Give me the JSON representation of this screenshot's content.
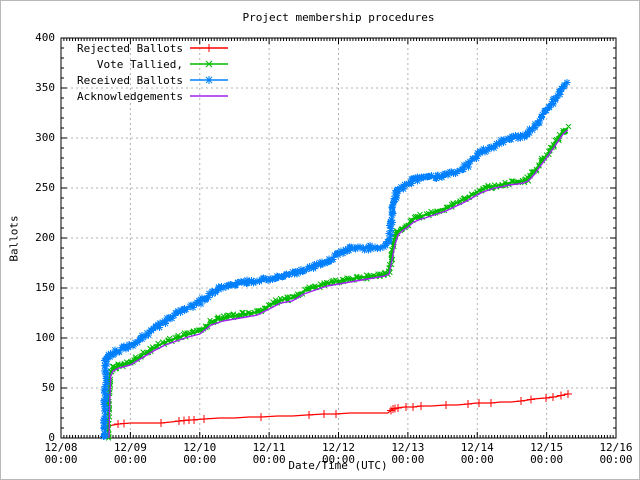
{
  "chart_data": {
    "type": "line",
    "title": "Project membership procedures",
    "xlabel": "Date/Time (UTC)",
    "ylabel": "Ballots",
    "ylim": [
      0,
      400
    ],
    "xlim_hours": [
      0,
      192
    ],
    "grid": true,
    "legend_position": "top-left",
    "grid_color": "#b0b0b0",
    "y_ticks": [
      "0",
      "50",
      "100",
      "150",
      "200",
      "250",
      "300",
      "350",
      "400"
    ],
    "x_ticks": [
      {
        "date": "12/08",
        "time": "00:00"
      },
      {
        "date": "12/09",
        "time": "00:00"
      },
      {
        "date": "12/10",
        "time": "00:00"
      },
      {
        "date": "12/11",
        "time": "00:00"
      },
      {
        "date": "12/12",
        "time": "00:00"
      },
      {
        "date": "12/13",
        "time": "00:00"
      },
      {
        "date": "12/14",
        "time": "00:00"
      },
      {
        "date": "12/15",
        "time": "00:00"
      },
      {
        "date": "12/16",
        "time": "00:00"
      }
    ],
    "series": [
      {
        "name": "Rejected Ballots",
        "color": "#ff0000",
        "marker": "plus",
        "points": [
          [
            16.5,
            0
          ],
          [
            16.6,
            12
          ],
          [
            18,
            13
          ],
          [
            20,
            14
          ],
          [
            24,
            15
          ],
          [
            32,
            15
          ],
          [
            34.6,
            15
          ],
          [
            38,
            16
          ],
          [
            41,
            17
          ],
          [
            45,
            18
          ],
          [
            49.5,
            19
          ],
          [
            55,
            20
          ],
          [
            60,
            20
          ],
          [
            65,
            21
          ],
          [
            69.2,
            21
          ],
          [
            75,
            22
          ],
          [
            80,
            22
          ],
          [
            85,
            23
          ],
          [
            91,
            24
          ],
          [
            95,
            24
          ],
          [
            100,
            25
          ],
          [
            110,
            25
          ],
          [
            113,
            25
          ],
          [
            114,
            27
          ],
          [
            115,
            29
          ],
          [
            116,
            30
          ],
          [
            119,
            31
          ],
          [
            122,
            31
          ],
          [
            124.6,
            32
          ],
          [
            128,
            32
          ],
          [
            133.2,
            33
          ],
          [
            137,
            33
          ],
          [
            140.8,
            34
          ],
          [
            143.9,
            35
          ],
          [
            148.8,
            35
          ],
          [
            152.2,
            36
          ],
          [
            155.7,
            36
          ],
          [
            159.1,
            37
          ],
          [
            161.6,
            38
          ],
          [
            163.3,
            39
          ],
          [
            167.6,
            40
          ],
          [
            170.6,
            41
          ],
          [
            172.3,
            42
          ],
          [
            173.7,
            43
          ],
          [
            175.3,
            44
          ]
        ],
        "markers_at": [
          19.7,
          21.8,
          34.6,
          40.8,
          42.5,
          44.3,
          46,
          49.5,
          69.2,
          85.8,
          91,
          95.1,
          114.2,
          114.9,
          115.6,
          116.6,
          119.3,
          121.8,
          124.6,
          133.2,
          140.8,
          144.6,
          148.8,
          159.1,
          162.6,
          167.8,
          170.2,
          173,
          175.4
        ]
      },
      {
        "name": "Vote Tallied,",
        "color": "#00bb00",
        "marker": "cross",
        "points": [
          [
            16.3,
            0
          ],
          [
            16.5,
            35
          ],
          [
            17,
            65
          ],
          [
            18,
            70
          ],
          [
            20,
            72
          ],
          [
            22,
            74
          ],
          [
            24,
            75
          ],
          [
            26,
            79
          ],
          [
            28,
            83
          ],
          [
            31,
            88
          ],
          [
            34,
            93
          ],
          [
            37,
            97
          ],
          [
            40,
            100
          ],
          [
            43,
            103
          ],
          [
            46,
            105
          ],
          [
            48,
            107
          ],
          [
            50,
            111
          ],
          [
            52,
            116
          ],
          [
            54,
            119
          ],
          [
            56,
            120
          ],
          [
            58,
            121
          ],
          [
            60,
            122
          ],
          [
            62,
            123
          ],
          [
            64,
            124
          ],
          [
            66,
            125
          ],
          [
            68,
            126
          ],
          [
            70,
            128
          ],
          [
            72,
            132
          ],
          [
            74,
            136
          ],
          [
            76,
            138
          ],
          [
            78,
            139
          ],
          [
            80,
            140
          ],
          [
            82,
            143
          ],
          [
            84,
            147
          ],
          [
            86,
            149
          ],
          [
            88,
            151
          ],
          [
            90,
            153
          ],
          [
            92,
            155
          ],
          [
            94,
            156
          ],
          [
            96,
            157
          ],
          [
            98,
            158
          ],
          [
            100,
            159
          ],
          [
            102,
            160
          ],
          [
            104,
            161
          ],
          [
            106,
            161
          ],
          [
            108,
            162
          ],
          [
            110,
            163
          ],
          [
            112,
            164
          ],
          [
            113.5,
            166
          ],
          [
            114.2,
            180
          ],
          [
            115,
            195
          ],
          [
            116,
            203
          ],
          [
            116.6,
            206
          ],
          [
            118,
            210
          ],
          [
            120,
            214
          ],
          [
            122,
            219
          ],
          [
            124.6,
            222
          ],
          [
            127,
            224
          ],
          [
            130,
            227
          ],
          [
            133.2,
            230
          ],
          [
            136,
            234
          ],
          [
            139,
            238
          ],
          [
            141,
            241
          ],
          [
            143.9,
            246
          ],
          [
            146,
            249
          ],
          [
            148,
            251
          ],
          [
            150,
            252
          ],
          [
            152.2,
            253
          ],
          [
            155,
            255
          ],
          [
            158,
            256
          ],
          [
            160,
            257
          ],
          [
            161.6,
            259
          ],
          [
            163.6,
            266
          ],
          [
            166.1,
            276
          ],
          [
            168.5,
            285
          ],
          [
            170.6,
            294
          ],
          [
            172.3,
            301
          ],
          [
            173.7,
            306
          ],
          [
            175.3,
            310
          ]
        ]
      },
      {
        "name": "Received Ballots",
        "color": "#0080ff",
        "marker": "asterisk",
        "points": [
          [
            15.2,
            0
          ],
          [
            15.3,
            40
          ],
          [
            15.5,
            77
          ],
          [
            16,
            80
          ],
          [
            17,
            83
          ],
          [
            18,
            85
          ],
          [
            20,
            88
          ],
          [
            22,
            91
          ],
          [
            24,
            93
          ],
          [
            26,
            97
          ],
          [
            28,
            101
          ],
          [
            31,
            106
          ],
          [
            34,
            112
          ],
          [
            37,
            118
          ],
          [
            40,
            124
          ],
          [
            43,
            129
          ],
          [
            46,
            133
          ],
          [
            48,
            136
          ],
          [
            50,
            140
          ],
          [
            52,
            145
          ],
          [
            55,
            149
          ],
          [
            58,
            152
          ],
          [
            61,
            154
          ],
          [
            64,
            156
          ],
          [
            67,
            157
          ],
          [
            70,
            158
          ],
          [
            72,
            159
          ],
          [
            75,
            161
          ],
          [
            78,
            163
          ],
          [
            81,
            165
          ],
          [
            84,
            168
          ],
          [
            87,
            171
          ],
          [
            90,
            174
          ],
          [
            93,
            178
          ],
          [
            96,
            184
          ],
          [
            98,
            187
          ],
          [
            100,
            189
          ],
          [
            103,
            190
          ],
          [
            106,
            190
          ],
          [
            109,
            191
          ],
          [
            112,
            192
          ],
          [
            113.5,
            196
          ],
          [
            114.2,
            215
          ],
          [
            115,
            232
          ],
          [
            116,
            243
          ],
          [
            116.6,
            248
          ],
          [
            118,
            251
          ],
          [
            120,
            254
          ],
          [
            121.5,
            257
          ],
          [
            123,
            259
          ],
          [
            124.6,
            260
          ],
          [
            127,
            260
          ],
          [
            130,
            261
          ],
          [
            133.2,
            263
          ],
          [
            136,
            266
          ],
          [
            139,
            270
          ],
          [
            141,
            273
          ],
          [
            143.9,
            283
          ],
          [
            146,
            287
          ],
          [
            149,
            291
          ],
          [
            152.2,
            296
          ],
          [
            155,
            299
          ],
          [
            158,
            301
          ],
          [
            160,
            302
          ],
          [
            161.6,
            305
          ],
          [
            163.6,
            311
          ],
          [
            166.1,
            320
          ],
          [
            168.5,
            330
          ],
          [
            170.6,
            338
          ],
          [
            172.3,
            345
          ],
          [
            173.7,
            350
          ],
          [
            174.7,
            355
          ]
        ]
      },
      {
        "name": "Acknowledgements",
        "color": "#a020f0",
        "marker": "none",
        "points": [
          [
            16.6,
            0
          ],
          [
            16.8,
            30
          ],
          [
            17.2,
            62
          ],
          [
            18,
            67
          ],
          [
            20,
            70
          ],
          [
            24,
            73
          ],
          [
            28,
            80
          ],
          [
            32,
            87
          ],
          [
            36,
            93
          ],
          [
            40,
            97
          ],
          [
            44,
            101
          ],
          [
            48,
            104
          ],
          [
            52,
            113
          ],
          [
            56,
            117
          ],
          [
            60,
            119
          ],
          [
            64,
            121
          ],
          [
            68,
            123
          ],
          [
            72,
            129
          ],
          [
            76,
            135
          ],
          [
            80,
            137
          ],
          [
            84,
            144
          ],
          [
            88,
            148
          ],
          [
            92,
            152
          ],
          [
            96,
            154
          ],
          [
            100,
            156
          ],
          [
            104,
            158
          ],
          [
            108,
            160
          ],
          [
            112,
            162
          ],
          [
            113.5,
            164
          ],
          [
            114.5,
            178
          ],
          [
            115.5,
            193
          ],
          [
            116.6,
            203
          ],
          [
            118,
            207
          ],
          [
            120,
            211
          ],
          [
            122,
            216
          ],
          [
            124.6,
            219
          ],
          [
            127,
            221
          ],
          [
            130,
            224
          ],
          [
            133.2,
            227
          ],
          [
            136,
            231
          ],
          [
            139,
            235
          ],
          [
            141,
            238
          ],
          [
            143.9,
            243
          ],
          [
            146,
            246
          ],
          [
            148,
            248
          ],
          [
            150,
            250
          ],
          [
            152.2,
            251
          ],
          [
            155,
            253
          ],
          [
            158,
            254
          ],
          [
            160,
            255
          ],
          [
            161.6,
            257
          ],
          [
            163.6,
            263
          ],
          [
            166.1,
            273
          ],
          [
            168.5,
            282
          ],
          [
            170.6,
            291
          ],
          [
            172.3,
            298
          ],
          [
            173.7,
            304
          ],
          [
            175.3,
            308
          ]
        ]
      }
    ]
  }
}
